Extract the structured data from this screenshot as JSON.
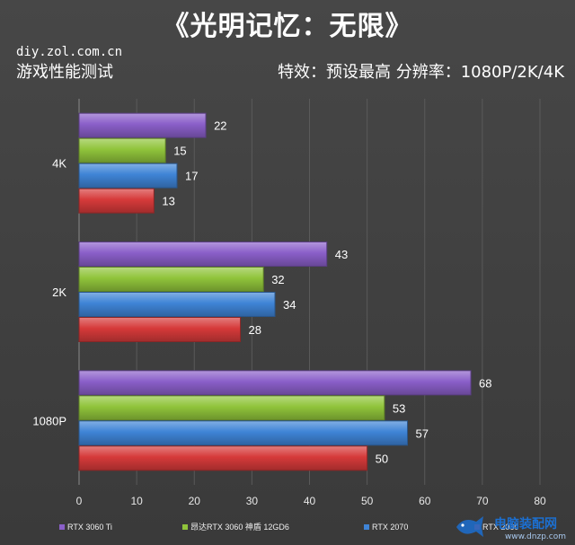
{
  "header": {
    "title": "《光明记忆：无限》",
    "source": "diy.zol.com.cn",
    "test_name": "游戏性能测试",
    "settings": "特效：预设最高   分辨率：1080P/2K/4K"
  },
  "watermark": {
    "text": "电脑装配网",
    "url": "www.dnzp.com",
    "icon": "fish-logo-icon"
  },
  "chart_data": {
    "type": "bar",
    "orientation": "horizontal",
    "title": "",
    "xlabel": "",
    "ylabel": "",
    "categories": [
      "4K",
      "2K",
      "1080P"
    ],
    "series": [
      {
        "name": "RTX 3060 Ti",
        "color": "#8a5fc9",
        "values": [
          22,
          43,
          68
        ]
      },
      {
        "name": "昂达RTX 3060 神盾 12GD6",
        "color": "#90c43b",
        "values": [
          15,
          32,
          53
        ]
      },
      {
        "name": "RTX 2070",
        "color": "#3f84d6",
        "values": [
          17,
          34,
          57
        ]
      },
      {
        "name": "RTX 2060",
        "color": "#d63a3a",
        "values": [
          13,
          28,
          50
        ]
      }
    ],
    "xlim": [
      0,
      80
    ],
    "xticks": [
      0,
      10,
      20,
      30,
      40,
      50,
      60,
      70,
      80
    ],
    "grid": true,
    "legend_position": "bottom",
    "data_labels": true
  }
}
